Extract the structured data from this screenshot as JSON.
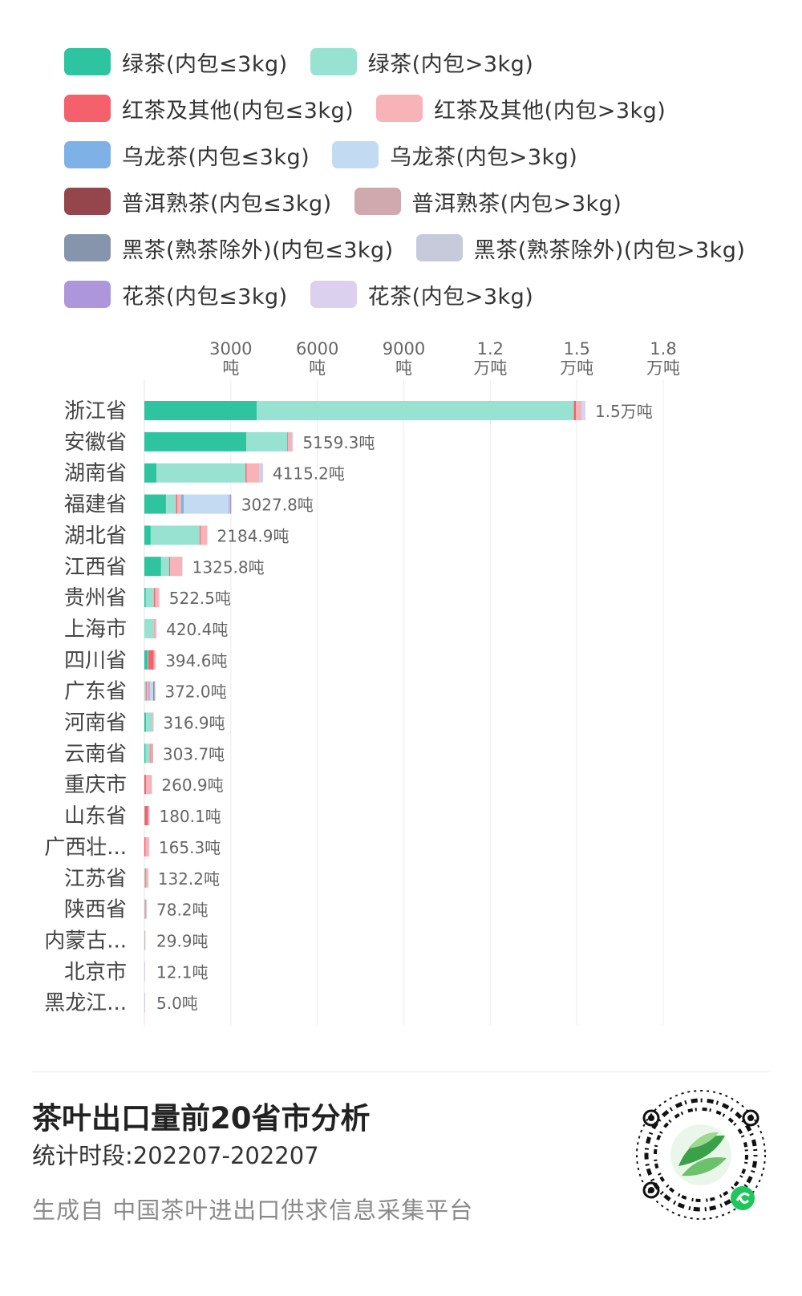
{
  "legend": {
    "rows": [
      [
        {
          "label": "绿茶(内包≤3kg)",
          "color": "#2ec4a0"
        },
        {
          "label": "绿茶(内包>3kg)",
          "color": "#98e2d2"
        }
      ],
      [
        {
          "label": "红茶及其他(内包≤3kg)",
          "color": "#f4606b"
        },
        {
          "label": "红茶及其他(内包>3kg)",
          "color": "#f8b3b8"
        }
      ],
      [
        {
          "label": "乌龙茶(内包≤3kg)",
          "color": "#7eb2e6"
        },
        {
          "label": "乌龙茶(内包>3kg)",
          "color": "#c2dbf3"
        }
      ],
      [
        {
          "label": "普洱熟茶(内包≤3kg)",
          "color": "#95464c"
        },
        {
          "label": "普洱熟茶(内包>3kg)",
          "color": "#cfa9ad"
        }
      ],
      [
        {
          "label": "黑茶(熟茶除外)(内包≤3kg)",
          "color": "#8695ab"
        },
        {
          "label": "黑茶(熟茶除外)(内包>3kg)",
          "color": "#c6cadb"
        }
      ],
      [
        {
          "label": "花茶(内包≤3kg)",
          "color": "#ad96dc"
        },
        {
          "label": "花茶(内包>3kg)",
          "color": "#dcd0ef"
        }
      ]
    ]
  },
  "chart_data": {
    "type": "bar",
    "orientation": "horizontal",
    "stacked": true,
    "xlim": [
      0,
      18000
    ],
    "x_ticks": [
      {
        "value": 3000,
        "line1": "3000",
        "line2": "吨"
      },
      {
        "value": 6000,
        "line1": "6000",
        "line2": "吨"
      },
      {
        "value": 9000,
        "line1": "9000",
        "line2": "吨"
      },
      {
        "value": 12000,
        "line1": "1.2",
        "line2": "万吨"
      },
      {
        "value": 15000,
        "line1": "1.5",
        "line2": "万吨"
      },
      {
        "value": 18000,
        "line1": "1.8",
        "line2": "万吨"
      }
    ],
    "grid": true,
    "legend_position": "top",
    "categories": [
      "浙江省",
      "安徽省",
      "湖南省",
      "福建省",
      "湖北省",
      "江西省",
      "贵州省",
      "上海市",
      "四川省",
      "广东省",
      "河南省",
      "云南省",
      "重庆市",
      "山东省",
      "广西壮...",
      "江苏省",
      "陕西省",
      "内蒙古...",
      "北京市",
      "黑龙江..."
    ],
    "totals": [
      "1.5万吨",
      "5159.3吨",
      "4115.2吨",
      "3027.8吨",
      "2184.9吨",
      "1325.8吨",
      "522.5吨",
      "420.4吨",
      "394.6吨",
      "372.0吨",
      "316.9吨",
      "303.7吨",
      "260.9吨",
      "180.1吨",
      "165.3吨",
      "132.2吨",
      "78.2吨",
      "29.9吨",
      "12.1吨",
      "5.0吨"
    ],
    "series": [
      {
        "name": "绿茶(内包≤3kg)",
        "color": "#2ec4a0",
        "values": [
          3900,
          3540,
          420,
          750,
          220,
          580,
          50,
          0,
          120,
          0,
          60,
          40,
          0,
          0,
          0,
          0,
          0,
          0,
          0,
          0
        ]
      },
      {
        "name": "绿茶(内包>3kg)",
        "color": "#98e2d2",
        "values": [
          11000,
          1420,
          3090,
          350,
          1700,
          280,
          280,
          340,
          20,
          50,
          220,
          150,
          0,
          10,
          0,
          20,
          20,
          10,
          5,
          2
        ]
      },
      {
        "name": "红茶及其他(内包≤3kg)",
        "color": "#f4606b",
        "values": [
          70,
          20,
          40,
          40,
          30,
          30,
          40,
          10,
          180,
          30,
          0,
          20,
          60,
          120,
          40,
          30,
          20,
          5,
          0,
          1
        ]
      },
      {
        "name": "红茶及其他(内包>3kg)",
        "color": "#f8b3b8",
        "values": [
          200,
          140,
          440,
          130,
          220,
          420,
          130,
          60,
          60,
          70,
          30,
          60,
          190,
          40,
          120,
          80,
          30,
          10,
          5,
          1
        ]
      },
      {
        "name": "乌龙茶(内包≤3kg)",
        "color": "#7eb2e6",
        "values": [
          0,
          0,
          0,
          100,
          0,
          0,
          0,
          0,
          0,
          40,
          0,
          0,
          0,
          0,
          0,
          0,
          0,
          0,
          0,
          0
        ]
      },
      {
        "name": "乌龙茶(内包>3kg)",
        "color": "#c2dbf3",
        "values": [
          50,
          0,
          60,
          1550,
          0,
          0,
          0,
          0,
          0,
          120,
          0,
          0,
          0,
          0,
          0,
          0,
          0,
          0,
          0,
          0
        ]
      },
      {
        "name": "普洱熟茶(内包≤3kg)",
        "color": "#95464c",
        "values": [
          0,
          0,
          0,
          0,
          0,
          0,
          0,
          0,
          0,
          20,
          0,
          10,
          0,
          0,
          0,
          0,
          0,
          0,
          0,
          0
        ]
      },
      {
        "name": "普洱熟茶(内包>3kg)",
        "color": "#cfa9ad",
        "values": [
          0,
          0,
          0,
          0,
          0,
          0,
          0,
          0,
          0,
          20,
          0,
          10,
          0,
          0,
          0,
          0,
          0,
          0,
          0,
          0
        ]
      },
      {
        "name": "黑茶(熟茶除外)(内包≤3kg)",
        "color": "#8695ab",
        "values": [
          0,
          0,
          0,
          10,
          0,
          0,
          0,
          0,
          0,
          10,
          0,
          0,
          0,
          0,
          0,
          0,
          0,
          0,
          0,
          0
        ]
      },
      {
        "name": "黑茶(熟茶除外)(内包>3kg)",
        "color": "#c6cadb",
        "values": [
          0,
          0,
          40,
          40,
          0,
          0,
          0,
          0,
          0,
          10,
          0,
          0,
          0,
          0,
          0,
          0,
          0,
          0,
          0,
          0
        ]
      },
      {
        "name": "花茶(内包≤3kg)",
        "color": "#ad96dc",
        "values": [
          0,
          0,
          0,
          40,
          0,
          0,
          0,
          0,
          0,
          0,
          0,
          0,
          0,
          0,
          0,
          0,
          0,
          0,
          0,
          0
        ]
      },
      {
        "name": "花茶(内包>3kg)",
        "color": "#dcd0ef",
        "values": [
          80,
          39,
          25,
          18,
          15,
          16,
          22,
          10,
          15,
          2,
          7,
          14,
          11,
          10,
          5,
          2,
          8,
          5,
          2,
          1
        ]
      }
    ]
  },
  "footer": {
    "title": "茶叶出口量前20省市分析",
    "period": "统计时段:202207-202207",
    "source": "生成自 中国茶叶进出口供求信息采集平台"
  }
}
